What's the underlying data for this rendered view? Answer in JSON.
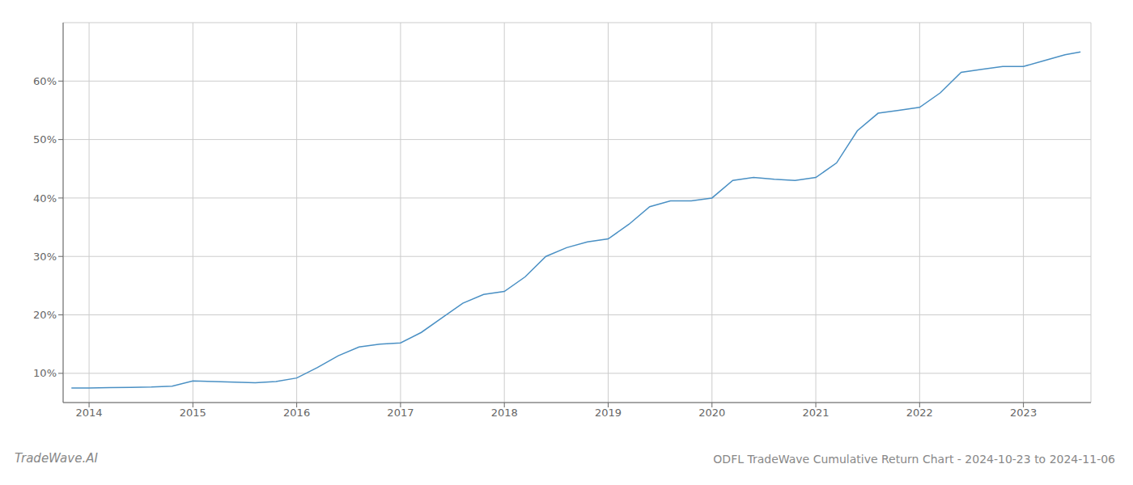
{
  "chart_data": {
    "type": "line",
    "title": "ODFL TradeWave Cumulative Return Chart - 2024-10-23 to 2024-11-06",
    "annotations": [
      "TradeWave.AI"
    ],
    "x": [
      2013.83,
      2014.0,
      2014.2,
      2014.4,
      2014.6,
      2014.8,
      2015.0,
      2015.2,
      2015.4,
      2015.6,
      2015.8,
      2016.0,
      2016.2,
      2016.4,
      2016.6,
      2016.8,
      2017.0,
      2017.2,
      2017.4,
      2017.6,
      2017.8,
      2018.0,
      2018.2,
      2018.4,
      2018.6,
      2018.8,
      2019.0,
      2019.2,
      2019.4,
      2019.6,
      2019.8,
      2020.0,
      2020.2,
      2020.4,
      2020.6,
      2020.8,
      2021.0,
      2021.2,
      2021.4,
      2021.6,
      2021.8,
      2022.0,
      2022.2,
      2022.4,
      2022.6,
      2022.8,
      2023.0,
      2023.2,
      2023.4,
      2023.55
    ],
    "values": [
      7.5,
      7.5,
      7.55,
      7.6,
      7.65,
      7.8,
      8.7,
      8.6,
      8.5,
      8.4,
      8.6,
      9.2,
      11.0,
      13.0,
      14.5,
      15.0,
      15.2,
      17.0,
      19.5,
      22.0,
      23.5,
      24.0,
      26.5,
      30.0,
      31.5,
      32.5,
      33.0,
      35.5,
      38.5,
      39.5,
      39.5,
      40.0,
      43.0,
      43.5,
      43.2,
      43.0,
      43.5,
      46.0,
      51.5,
      54.5,
      55.0,
      55.5,
      58.0,
      61.5,
      62.0,
      62.5,
      62.5,
      63.5,
      64.5,
      65.0
    ],
    "color": "#4a90c4",
    "xlim": [
      2013.75,
      2023.65
    ],
    "xticks": [
      2014,
      2015,
      2016,
      2017,
      2018,
      2019,
      2020,
      2021,
      2022,
      2023
    ],
    "ylim": [
      5,
      70
    ],
    "yticks": [
      {
        "value": 10,
        "label": "10%"
      },
      {
        "value": 20,
        "label": "20%"
      },
      {
        "value": 30,
        "label": "30%"
      },
      {
        "value": 40,
        "label": "40%"
      },
      {
        "value": 50,
        "label": "50%"
      },
      {
        "value": 60,
        "label": "60%"
      }
    ],
    "grid": true
  }
}
